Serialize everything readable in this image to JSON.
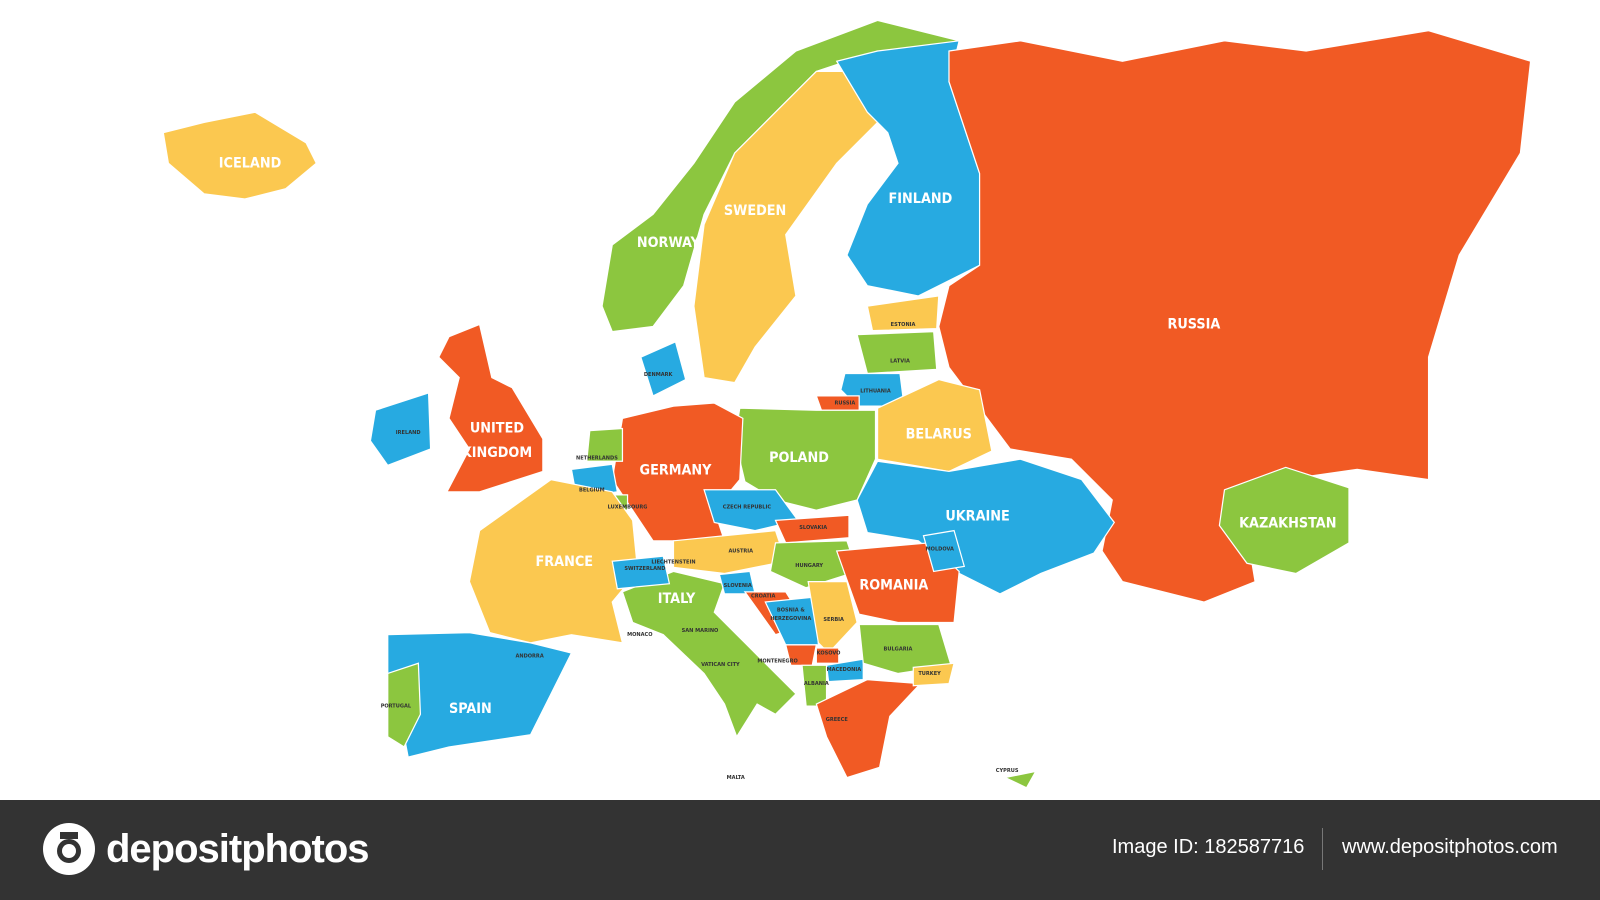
{
  "map": {
    "countries": [
      {
        "label": "ICELAND",
        "color": "#fbc850"
      },
      {
        "label": "NORWAY",
        "color": "#8cc63f"
      },
      {
        "label": "SWEDEN",
        "color": "#fbc850"
      },
      {
        "label": "FINLAND",
        "color": "#27aae1"
      },
      {
        "label": "RUSSIA",
        "color": "#f15a24"
      },
      {
        "label": "KAZAKHSTAN",
        "color": "#8cc63f"
      },
      {
        "label": "ESTONIA",
        "color": "#fbc850"
      },
      {
        "label": "LATVIA",
        "color": "#8cc63f"
      },
      {
        "label": "LITHUANIA",
        "color": "#27aae1"
      },
      {
        "label": "RUSSIA",
        "color": "#f15a24"
      },
      {
        "label": "BELARUS",
        "color": "#fbc850"
      },
      {
        "label": "UKRAINE",
        "color": "#27aae1"
      },
      {
        "label": "POLAND",
        "color": "#8cc63f"
      },
      {
        "label": "GERMANY",
        "color": "#f15a24"
      },
      {
        "label": "DENMARK",
        "color": "#27aae1"
      },
      {
        "label": "NETHERLANDS",
        "color": "#8cc63f"
      },
      {
        "label": "BELGIUM",
        "color": "#27aae1"
      },
      {
        "label": "LUXEMBOURG",
        "color": "#8cc63f"
      },
      {
        "lines": [
          "UNITED",
          "KINGDOM"
        ],
        "color": "#f15a24"
      },
      {
        "label": "IRELAND",
        "color": "#27aae1"
      },
      {
        "label": "FRANCE",
        "color": "#fbc850"
      },
      {
        "label": "SPAIN",
        "color": "#27aae1"
      },
      {
        "label": "PORTUGAL",
        "color": "#8cc63f"
      },
      {
        "label": "ITALY",
        "color": "#8cc63f"
      },
      {
        "label": "SWITZERLAND",
        "color": "#27aae1"
      },
      {
        "label": "AUSTRIA",
        "color": "#fbc850"
      },
      {
        "label": "CZECH REPUBLIC",
        "color": "#27aae1"
      },
      {
        "label": "SLOVAKIA",
        "color": "#f15a24"
      },
      {
        "label": "HUNGARY",
        "color": "#8cc63f"
      },
      {
        "label": "SLOVENIA",
        "color": "#27aae1"
      },
      {
        "label": "CROATIA",
        "color": "#f15a24"
      },
      {
        "lines": [
          "BOSNIA &",
          "HERZEGOVINA"
        ],
        "color": "#27aae1"
      },
      {
        "label": "SERBIA",
        "color": "#fbc850"
      },
      {
        "label": "MONTENEGRO",
        "color": "#f15a24"
      },
      {
        "label": "KOSOVO",
        "color": "#f15a24"
      },
      {
        "label": "MACEDONIA",
        "color": "#27aae1"
      },
      {
        "label": "ALBANIA",
        "color": "#8cc63f"
      },
      {
        "label": "GREECE",
        "color": "#f15a24"
      },
      {
        "label": "BULGARIA",
        "color": "#8cc63f"
      },
      {
        "label": "TURKEY",
        "color": "#fbc850"
      },
      {
        "label": "ROMANIA",
        "color": "#f15a24"
      },
      {
        "label": "MOLDOVA",
        "color": "#27aae1"
      },
      {
        "label": "CYPRUS",
        "color": "#8cc63f"
      },
      {
        "label": "LIECHTENSTEIN"
      },
      {
        "label": "MONACO"
      },
      {
        "label": "SAN MARINO"
      },
      {
        "label": "VATICAN CITY"
      },
      {
        "label": "ANDORRA"
      },
      {
        "label": "MALTA"
      }
    ]
  },
  "footer": {
    "logo": "depositphotos",
    "image_id": "Image ID: 182587716",
    "url": "www.depositphotos.com"
  }
}
